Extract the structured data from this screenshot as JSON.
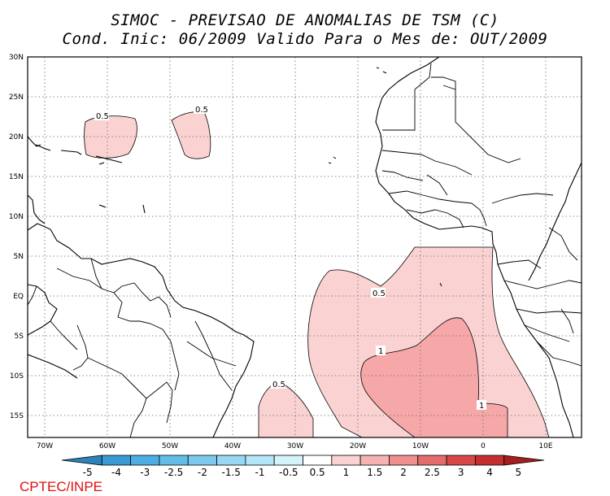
{
  "title": {
    "line1": "SIMOC - PREVISAO DE ANOMALIAS DE TSM (C)",
    "line2": "Cond. Inic: 06/2009   Valido Para o Mes de: OUT/2009"
  },
  "axes": {
    "lat_labels": [
      "30N",
      "25N",
      "20N",
      "15N",
      "10N",
      "5N",
      "EQ",
      "5S",
      "10S",
      "15S"
    ],
    "lon_labels": [
      "70W",
      "60W",
      "50W",
      "40W",
      "30W",
      "20W",
      "10W",
      "0",
      "10E"
    ]
  },
  "contour_labels": {
    "c1": "0.5",
    "c2": "0.5",
    "c3": "0.5",
    "c4": "0.5",
    "c5": "1",
    "c6": "1"
  },
  "colorbar": {
    "labels": [
      "-5",
      "-4",
      "-3",
      "-2.5",
      "-2",
      "-1.5",
      "-1",
      "-0.5",
      "0.5",
      "1",
      "1.5",
      "2",
      "2.5",
      "3",
      "4",
      "5"
    ],
    "colors": [
      "#2b83ba",
      "#3a99d4",
      "#4eaee3",
      "#63bde9",
      "#7ccaef",
      "#98d8f4",
      "#b4e6f9",
      "#d6f3fc",
      "#ffffff",
      "#fbd2d2",
      "#f6b3b3",
      "#ee9090",
      "#e56c6c",
      "#d84848",
      "#c42e2e",
      "#a51d1d"
    ]
  },
  "footer": "CPTEC/INPE"
}
